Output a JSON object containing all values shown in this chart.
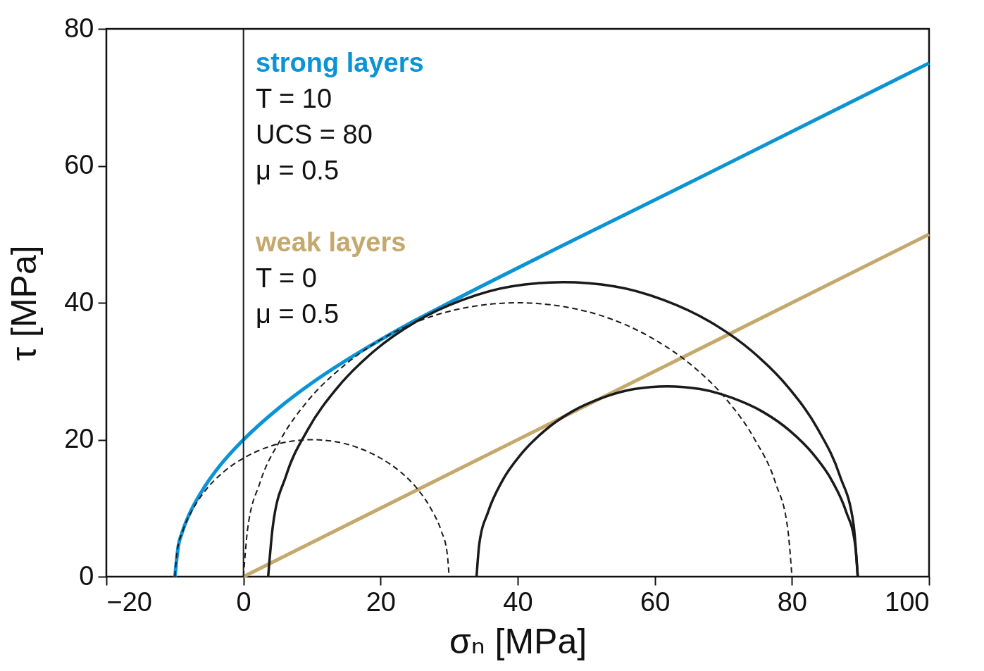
{
  "chart_data": {
    "type": "line",
    "xlabel": "σₙ [MPa]",
    "ylabel": "τ [MPa]",
    "xlim": [
      -20,
      100
    ],
    "ylim": [
      0,
      80
    ],
    "xticks": [
      -20,
      0,
      20,
      40,
      60,
      80,
      100
    ],
    "yticks": [
      0,
      20,
      40,
      60,
      80
    ],
    "grid": false,
    "marker": "none",
    "annotations": [
      "T = 10",
      "UCS = 80",
      "μ = 0.5",
      "T = 0",
      "μ = 0.5"
    ],
    "ref_lines": [
      {
        "axis": "x",
        "value": 0,
        "color": "#1a1a1a"
      }
    ],
    "series": [
      {
        "name": "strong layers",
        "color": "#0a93d5",
        "line_style": "solid",
        "x": [
          -10,
          -9.5,
          -9,
          -8,
          -6,
          -4,
          -2,
          0,
          5,
          10,
          15,
          20,
          25,
          30,
          65,
          100
        ],
        "values": [
          0,
          4.5,
          6.3,
          8.9,
          12.6,
          15.5,
          17.9,
          20,
          24.5,
          28.3,
          31.6,
          34.6,
          37.4,
          40,
          57.5,
          75
        ]
      },
      {
        "name": "weak layers",
        "color": "#c4a86c",
        "line_style": "solid",
        "x": [
          0,
          100
        ],
        "values": [
          0,
          50
        ]
      },
      {
        "color": "#1a1a1a",
        "line_style": "solid",
        "x": [
          89.6,
          89,
          87,
          83.8,
          79.5,
          74.2,
          68.1,
          61.3,
          54.1,
          46.6,
          39.1,
          31.9,
          25.1,
          19,
          13.7,
          9.4,
          6.2,
          4.3,
          3.6
        ],
        "values": [
          0,
          7.5,
          14.7,
          21.5,
          27.6,
          32.9,
          37.2,
          40.4,
          42.4,
          43,
          42.4,
          40.4,
          37.2,
          32.9,
          27.6,
          21.5,
          14.7,
          7.5,
          0
        ]
      },
      {
        "color": "#1a1a1a",
        "line_style": "solid",
        "x": [
          89.6,
          89.2,
          87.9,
          85.9,
          83.1,
          79.7,
          75.7,
          71.3,
          66.6,
          61.8,
          57,
          52.3,
          47.9,
          43.9,
          40.5,
          37.7,
          35.7,
          34.4,
          34
        ],
        "values": [
          0,
          4.8,
          9.5,
          13.9,
          17.9,
          21.3,
          24.1,
          26.1,
          27.4,
          27.8,
          27.4,
          26.1,
          24.1,
          21.3,
          17.9,
          13.9,
          9.5,
          4.8,
          0
        ]
      },
      {
        "color": "#1a1a1a",
        "line_style": "dashed",
        "x": [
          80,
          79.4,
          77.6,
          74.6,
          70.6,
          65.7,
          60,
          53.7,
          46.9,
          40,
          33.1,
          26.3,
          20,
          14.4,
          9.4,
          5.4,
          2.4,
          0.6,
          0
        ],
        "values": [
          0,
          6.9,
          13.7,
          20,
          25.7,
          30.6,
          34.6,
          37.6,
          39.4,
          40,
          39.4,
          37.6,
          34.6,
          30.6,
          25.7,
          20,
          13.7,
          6.9,
          0
        ]
      },
      {
        "color": "#1a1a1a",
        "line_style": "dashed",
        "x": [
          30,
          29.7,
          28.8,
          27.3,
          25.3,
          22.9,
          20,
          16.8,
          13.5,
          10,
          6.5,
          3.2,
          0,
          -2.9,
          -5.3,
          -7.3,
          -8.8,
          -9.7,
          -10
        ],
        "values": [
          0,
          3.5,
          6.8,
          10,
          12.9,
          15.3,
          17.3,
          18.8,
          19.7,
          20,
          19.7,
          18.8,
          17.3,
          15.3,
          12.9,
          10,
          6.8,
          3.5,
          0
        ]
      }
    ]
  }
}
